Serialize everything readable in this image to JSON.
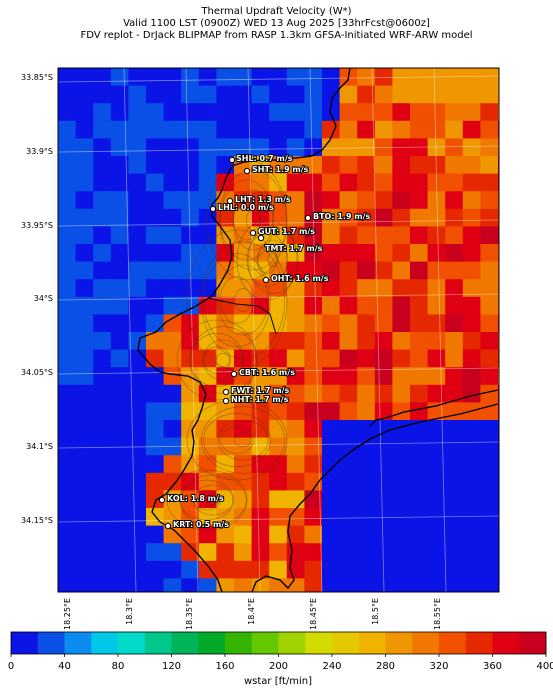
{
  "header": {
    "line1": "Thermal Updraft Velocity (W*)",
    "line2": "Valid 1100 LST (0900Z) WED 13 Aug 2025 [33hrFcst@0600z]",
    "line3": "FDV replot - DrJack BLIPMAP from RASP 1.3km GFSA-Initiated WRF-ARW model"
  },
  "axes": {
    "lat_labels": [
      "33.85°S",
      "33.9°S",
      "33.95°S",
      "34°S",
      "34.05°S",
      "34.1°S",
      "34.15°S"
    ],
    "lon_labels": [
      "18.25°E",
      "18.3°E",
      "18.35°E",
      "18.4°E",
      "18.45°E",
      "18.5°E",
      "18.55°E"
    ]
  },
  "stations": [
    {
      "label": "SHL: 0.7 m/s"
    },
    {
      "label": "SHT: 1.9 m/s"
    },
    {
      "label": "LHT: 1.3 m/s"
    },
    {
      "label": "LHL: 0.0 m/s"
    },
    {
      "label": "BTO: 1.9 m/s"
    },
    {
      "label": "GUT: 1.7 m/s"
    },
    {
      "label": "TMT: 1.7 m/s"
    },
    {
      "label": "OHT: 1.6 m/s"
    },
    {
      "label": "CBT: 1.6 m/s"
    },
    {
      "label": "FWT: 1.7 m/s"
    },
    {
      "label": "NHT: 1.7 m/s"
    },
    {
      "label": "KOL: 1.8 m/s"
    },
    {
      "label": "KRT: 0.5 m/s"
    }
  ],
  "colorbar": {
    "ticks": [
      "0",
      "40",
      "80",
      "120",
      "160",
      "200",
      "240",
      "280",
      "320",
      "360",
      "400"
    ],
    "title": "wstar [ft/min]",
    "colors": [
      "#0a14e6",
      "#0a50e6",
      "#0a8cf0",
      "#00c8e6",
      "#00dcc8",
      "#00c88c",
      "#00b45a",
      "#00aa28",
      "#32b400",
      "#64c800",
      "#a0d200",
      "#d2dc00",
      "#e6c800",
      "#f0b400",
      "#f09600",
      "#f07800",
      "#f05000",
      "#e62800",
      "#e00014",
      "#c8001e"
    ]
  }
}
